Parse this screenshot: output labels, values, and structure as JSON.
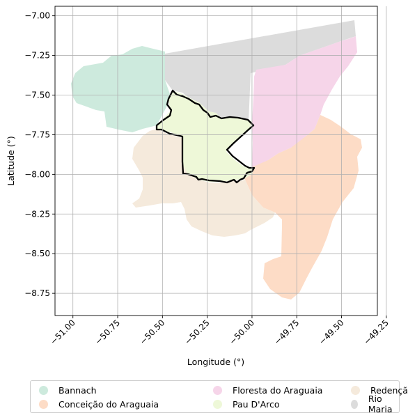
{
  "chart_data": {
    "type": "map",
    "xlabel": "Longitude (°)",
    "ylabel": "Latitude (°)",
    "xlim": [
      -51.1,
      -49.3
    ],
    "ylim": [
      -8.89,
      -6.94
    ],
    "xticks": [
      "−51.00",
      "−50.75",
      "−50.50",
      "−50.25",
      "−50.00",
      "−49.75",
      "−49.50",
      "−49.25"
    ],
    "xtick_values": [
      -51.0,
      -50.75,
      -50.5,
      -50.25,
      -50.0,
      -49.75,
      -49.5,
      -49.25
    ],
    "yticks": [
      "−7.00",
      "−7.25",
      "−7.50",
      "−7.75",
      "−8.00",
      "−8.25",
      "−8.50",
      "−8.75"
    ],
    "ytick_values": [
      -7.0,
      -7.25,
      -7.5,
      -7.75,
      -8.0,
      -8.25,
      -8.5,
      -8.75
    ],
    "grid": true,
    "legend_position": "bottom",
    "highlighted_region": "Pau D'Arco",
    "series": [
      {
        "name": "Bannach",
        "color": "#cdeadd"
      },
      {
        "name": "Conceição do Araguaia",
        "color": "#fddcc6"
      },
      {
        "name": "Floresta do Araguaia",
        "color": "#f6d5e9"
      },
      {
        "name": "Pau D'Arco",
        "color": "#eef8d8"
      },
      {
        "name": "Redenção",
        "color": "#f5eadc"
      },
      {
        "name": "Rio Maria",
        "color": "#dcdcdc"
      }
    ]
  }
}
